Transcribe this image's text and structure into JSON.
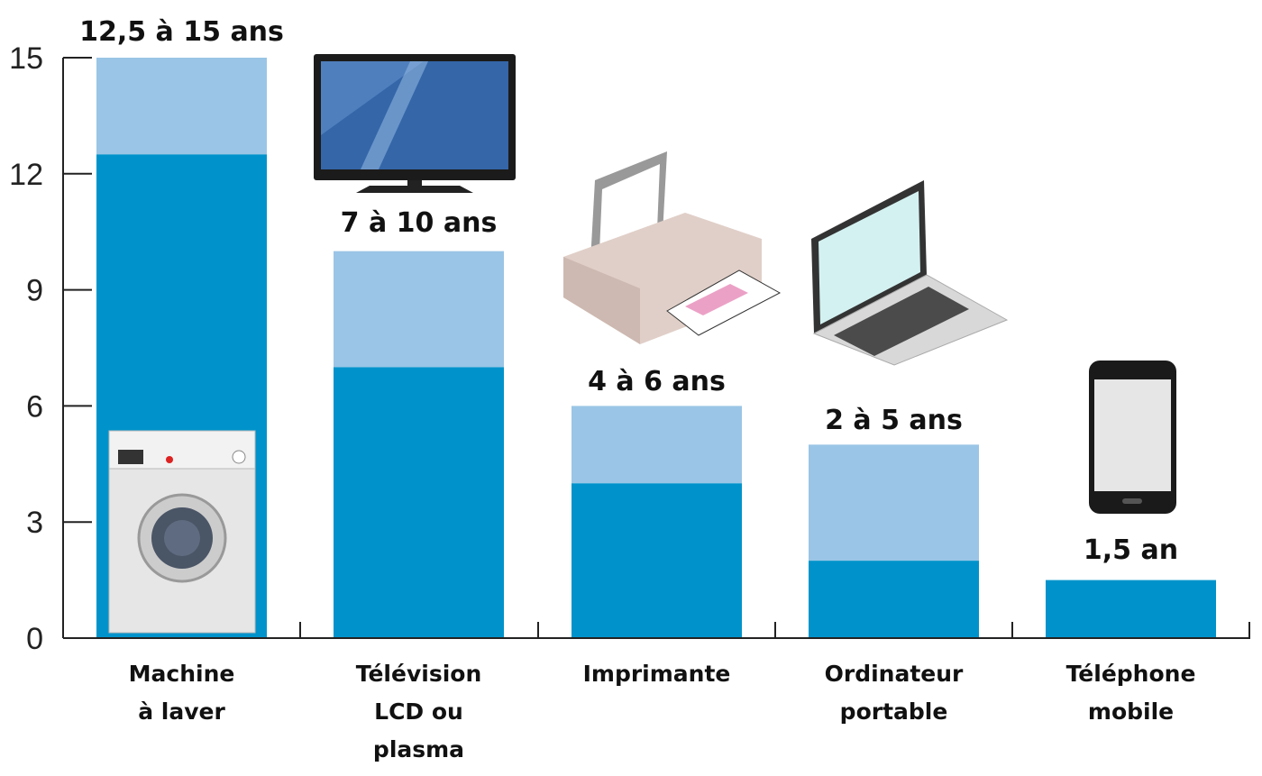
{
  "chart_data": {
    "type": "bar",
    "stacked_range": true,
    "categories": [
      [
        "Machine",
        "à laver"
      ],
      [
        "Télévision",
        "LCD ou",
        "plasma"
      ],
      [
        "Imprimante"
      ],
      [
        "Ordinateur",
        "portable"
      ],
      [
        "Téléphone",
        "mobile"
      ]
    ],
    "min_values": [
      12.5,
      7,
      4,
      2,
      1.5
    ],
    "max_values": [
      15,
      10,
      6,
      5,
      1.5
    ],
    "value_labels": [
      "12,5 à 15 ans",
      "7 à 10 ans",
      "4 à 6 ans",
      "2 à 5 ans",
      "1,5 an"
    ],
    "ylim": [
      0,
      15
    ],
    "yticks": [
      0,
      3,
      6,
      9,
      12,
      15
    ],
    "xlabel": "",
    "ylabel": "",
    "grid": false,
    "colors": {
      "min": "#0093CB",
      "range": "#9AC5E6",
      "axis": "#222222"
    },
    "icons": [
      "washing-machine-icon",
      "television-icon",
      "printer-icon",
      "laptop-icon",
      "smartphone-icon"
    ]
  }
}
